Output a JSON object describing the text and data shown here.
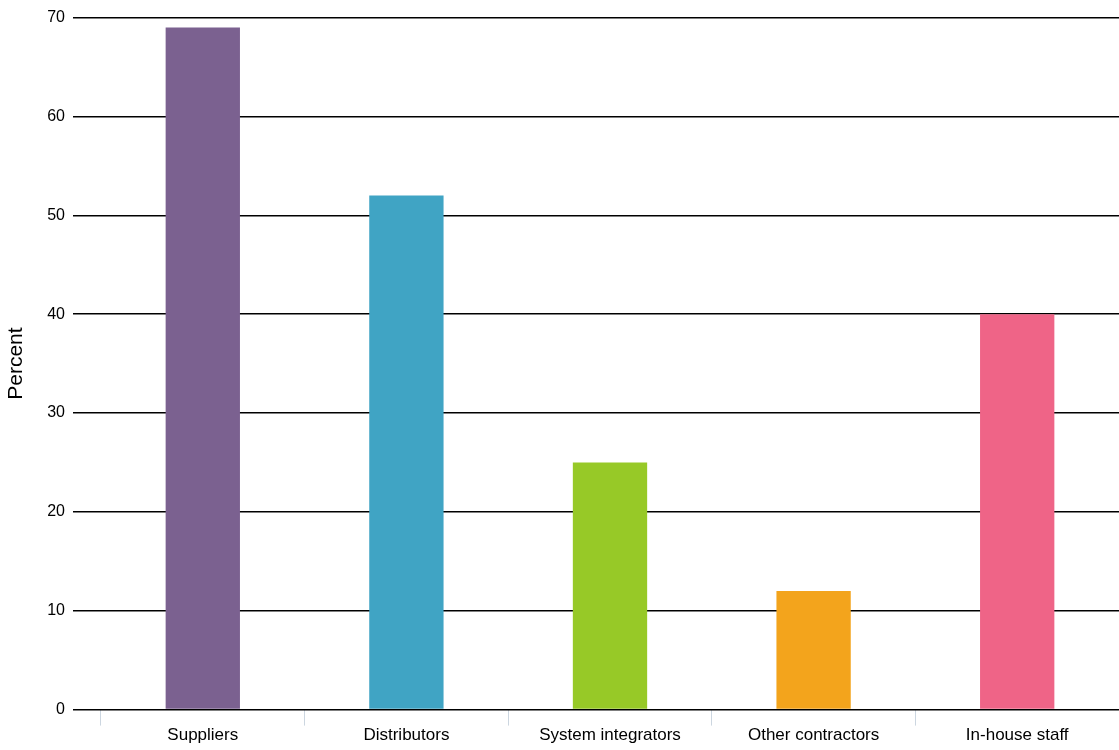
{
  "chart_data": {
    "type": "bar",
    "ylabel": "Percent",
    "categories": [
      "Suppliers",
      "Distributors",
      "System integrators",
      "Other contractors",
      "In-house staff"
    ],
    "values": [
      69,
      52,
      25,
      12,
      40
    ],
    "colors": [
      "#7b6190",
      "#40a4c4",
      "#97c927",
      "#f3a41c",
      "#ef6487"
    ],
    "ylim": [
      0,
      70
    ],
    "yticks": [
      0,
      10,
      20,
      30,
      40,
      50,
      60,
      70
    ],
    "grid": "y",
    "legend": false
  }
}
